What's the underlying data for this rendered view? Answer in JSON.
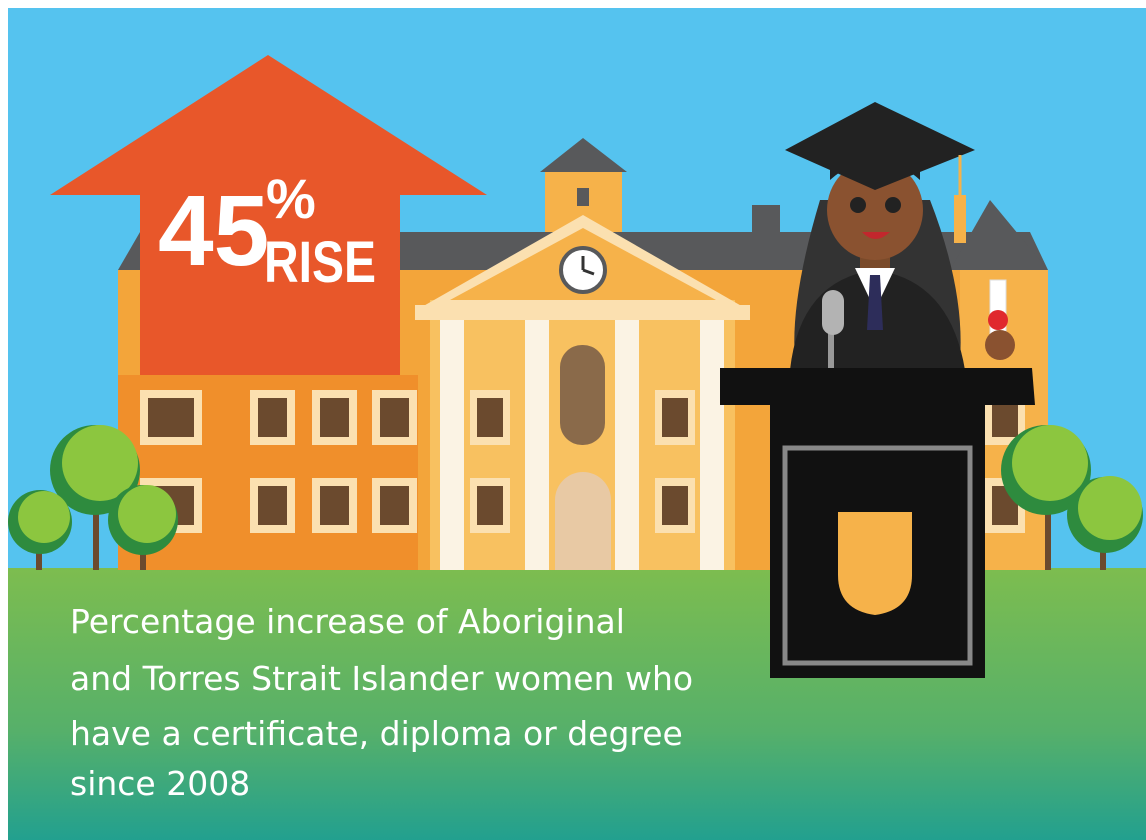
{
  "headline": {
    "number": "45",
    "unit": "%",
    "word": "RISE"
  },
  "caption": [
    "Percentage increase of Aboriginal",
    "and Torres Strait Islander women who",
    "have a certificate, diploma or degree",
    "since 2008"
  ]
}
